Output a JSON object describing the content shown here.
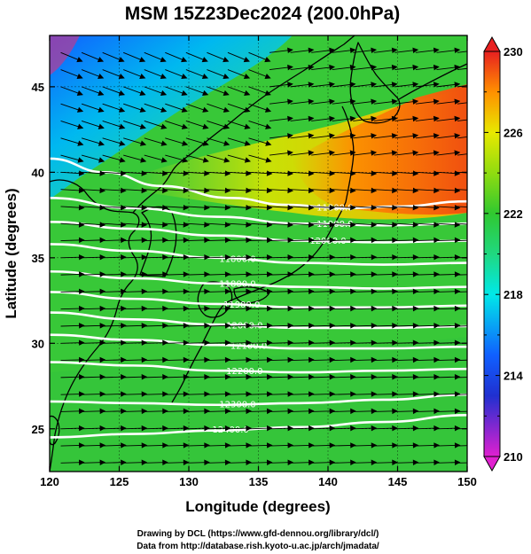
{
  "title": "MSM 15Z23Dec2024 (200.0hPa)",
  "x_axis": {
    "label": "Longitude (degrees)",
    "range": [
      120,
      150
    ],
    "ticks": [
      {
        "value": 120,
        "label": "120"
      },
      {
        "value": 125,
        "label": "125"
      },
      {
        "value": 130,
        "label": "130"
      },
      {
        "value": 135,
        "label": "135"
      },
      {
        "value": 140,
        "label": "140"
      },
      {
        "value": 145,
        "label": "145"
      },
      {
        "value": 150,
        "label": "150"
      }
    ]
  },
  "y_axis": {
    "label": "Latitude  (degrees)",
    "range": [
      22.5,
      48
    ],
    "ticks": [
      {
        "value": 25,
        "label": "25"
      },
      {
        "value": 30,
        "label": "30"
      },
      {
        "value": 35,
        "label": "35"
      },
      {
        "value": 40,
        "label": "40"
      },
      {
        "value": 45,
        "label": "45"
      }
    ]
  },
  "colorbar": {
    "min": 210,
    "max": 230,
    "ticks": [
      {
        "value": 210,
        "label": "210"
      },
      {
        "value": 214,
        "label": "214"
      },
      {
        "value": 218,
        "label": "218"
      },
      {
        "value": 222,
        "label": "222"
      },
      {
        "value": 226,
        "label": "226"
      },
      {
        "value": 230,
        "label": "230"
      }
    ],
    "minor_ticks": [
      212,
      216,
      220,
      224,
      228
    ],
    "stops": [
      {
        "value": 210,
        "color": "#e020d0"
      },
      {
        "value": 213,
        "color": "#2030d0"
      },
      {
        "value": 215,
        "color": "#1060ff"
      },
      {
        "value": 218,
        "color": "#00e8e8"
      },
      {
        "value": 220,
        "color": "#20d880"
      },
      {
        "value": 222,
        "color": "#30c830"
      },
      {
        "value": 224,
        "color": "#90dc10"
      },
      {
        "value": 226,
        "color": "#e8e800"
      },
      {
        "value": 228,
        "color": "#ff9000"
      },
      {
        "value": 230,
        "color": "#e82020"
      }
    ]
  },
  "contours": {
    "color": "#ffffff",
    "lines": [
      {
        "label": "11800.0",
        "points": [
          [
            120,
            40.8
          ],
          [
            124,
            40.0
          ],
          [
            128,
            39.2
          ],
          [
            133,
            38.5
          ],
          [
            137,
            38.1
          ],
          [
            141,
            37.9
          ],
          [
            145,
            38.0
          ],
          [
            150,
            38.3
          ]
        ]
      },
      {
        "label": "11900.0",
        "points": [
          [
            120,
            38.5
          ],
          [
            126,
            37.9
          ],
          [
            132,
            37.4
          ],
          [
            138,
            37.0
          ],
          [
            144,
            36.9
          ],
          [
            150,
            37.0
          ]
        ]
      },
      {
        "label": "12000.0",
        "points": [
          [
            120,
            37.1
          ],
          [
            126,
            36.7
          ],
          [
            132,
            36.3
          ],
          [
            138,
            36.0
          ],
          [
            144,
            35.9
          ],
          [
            150,
            36.0
          ]
        ]
      },
      {
        "label": "11800.0",
        "points": [
          [
            120,
            35.8
          ],
          [
            126,
            35.4
          ],
          [
            132,
            35.0
          ],
          [
            138,
            34.7
          ],
          [
            144,
            34.6
          ],
          [
            150,
            34.7
          ]
        ]
      },
      {
        "label": "11800.0",
        "points": [
          [
            120,
            34.2
          ],
          [
            126,
            33.8
          ],
          [
            132,
            33.5
          ],
          [
            138,
            33.3
          ],
          [
            144,
            33.2
          ],
          [
            150,
            33.3
          ]
        ]
      },
      {
        "label": "11900.0",
        "points": [
          [
            120,
            33.0
          ],
          [
            126,
            32.6
          ],
          [
            132,
            32.3
          ],
          [
            138,
            32.1
          ],
          [
            144,
            32.1
          ],
          [
            150,
            32.2
          ]
        ]
      },
      {
        "label": "12000.0",
        "points": [
          [
            120,
            31.8
          ],
          [
            126,
            31.4
          ],
          [
            132,
            31.1
          ],
          [
            138,
            30.9
          ],
          [
            144,
            30.9
          ],
          [
            150,
            31.0
          ]
        ]
      },
      {
        "label": "12100.0",
        "points": [
          [
            120,
            30.5
          ],
          [
            126,
            30.2
          ],
          [
            132,
            29.9
          ],
          [
            138,
            29.7
          ],
          [
            144,
            29.7
          ],
          [
            150,
            29.8
          ]
        ]
      },
      {
        "label": "12200.0",
        "points": [
          [
            120,
            28.9
          ],
          [
            126,
            28.7
          ],
          [
            132,
            28.4
          ],
          [
            138,
            28.3
          ],
          [
            144,
            28.4
          ],
          [
            150,
            28.5
          ]
        ]
      },
      {
        "label": "12300.0",
        "points": [
          [
            120,
            26.6
          ],
          [
            126,
            26.5
          ],
          [
            132,
            26.4
          ],
          [
            138,
            26.5
          ],
          [
            144,
            26.7
          ],
          [
            150,
            27.0
          ]
        ]
      },
      {
        "label": "12400.0",
        "points": [
          [
            120,
            24.5
          ],
          [
            126,
            24.7
          ],
          [
            132,
            24.9
          ],
          [
            138,
            25.1
          ],
          [
            144,
            25.4
          ],
          [
            150,
            25.8
          ]
        ]
      }
    ]
  },
  "credits": {
    "line1": "Drawing by DCL (https://www.gfd-dennou.org/library/dcl/)",
    "line2": "Data from http://database.rish.kyoto-u.ac.jp/arch/jmadata/"
  }
}
